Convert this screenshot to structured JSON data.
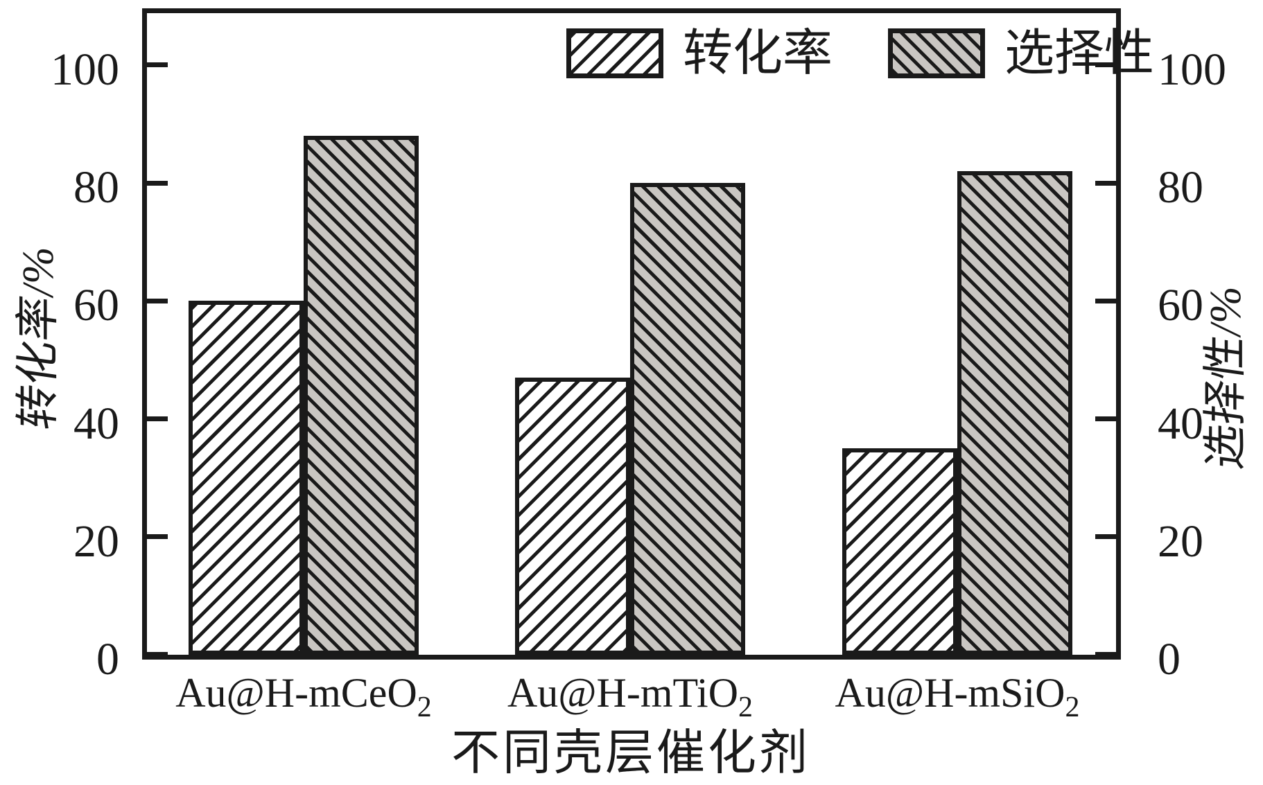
{
  "chart_data": {
    "type": "bar",
    "title": "",
    "categories": [
      {
        "base": "Au@H-mCeO",
        "sub": "2"
      },
      {
        "base": "Au@H-mTiO",
        "sub": "2"
      },
      {
        "base": "Au@H-mSiO",
        "sub": "2"
      }
    ],
    "series": [
      {
        "name": "转化率",
        "values": [
          60,
          47,
          35
        ],
        "hatch": "forward",
        "fill": "#ffffff"
      },
      {
        "name": "选择性",
        "values": [
          88,
          80,
          82
        ],
        "hatch": "back",
        "fill": "#c9c6c2"
      }
    ],
    "xlabel": "不同壳层催化剂",
    "ylabel_left": "转化率/%",
    "ylabel_right": "选择性/%",
    "ylim": [
      0,
      100
    ],
    "yticks": [
      0,
      20,
      40,
      60,
      80,
      100
    ],
    "legend_position": "top-inside",
    "grid": false,
    "axis_color": "#1a1a1a",
    "bar_gray_fill": "#c9c6c2"
  }
}
